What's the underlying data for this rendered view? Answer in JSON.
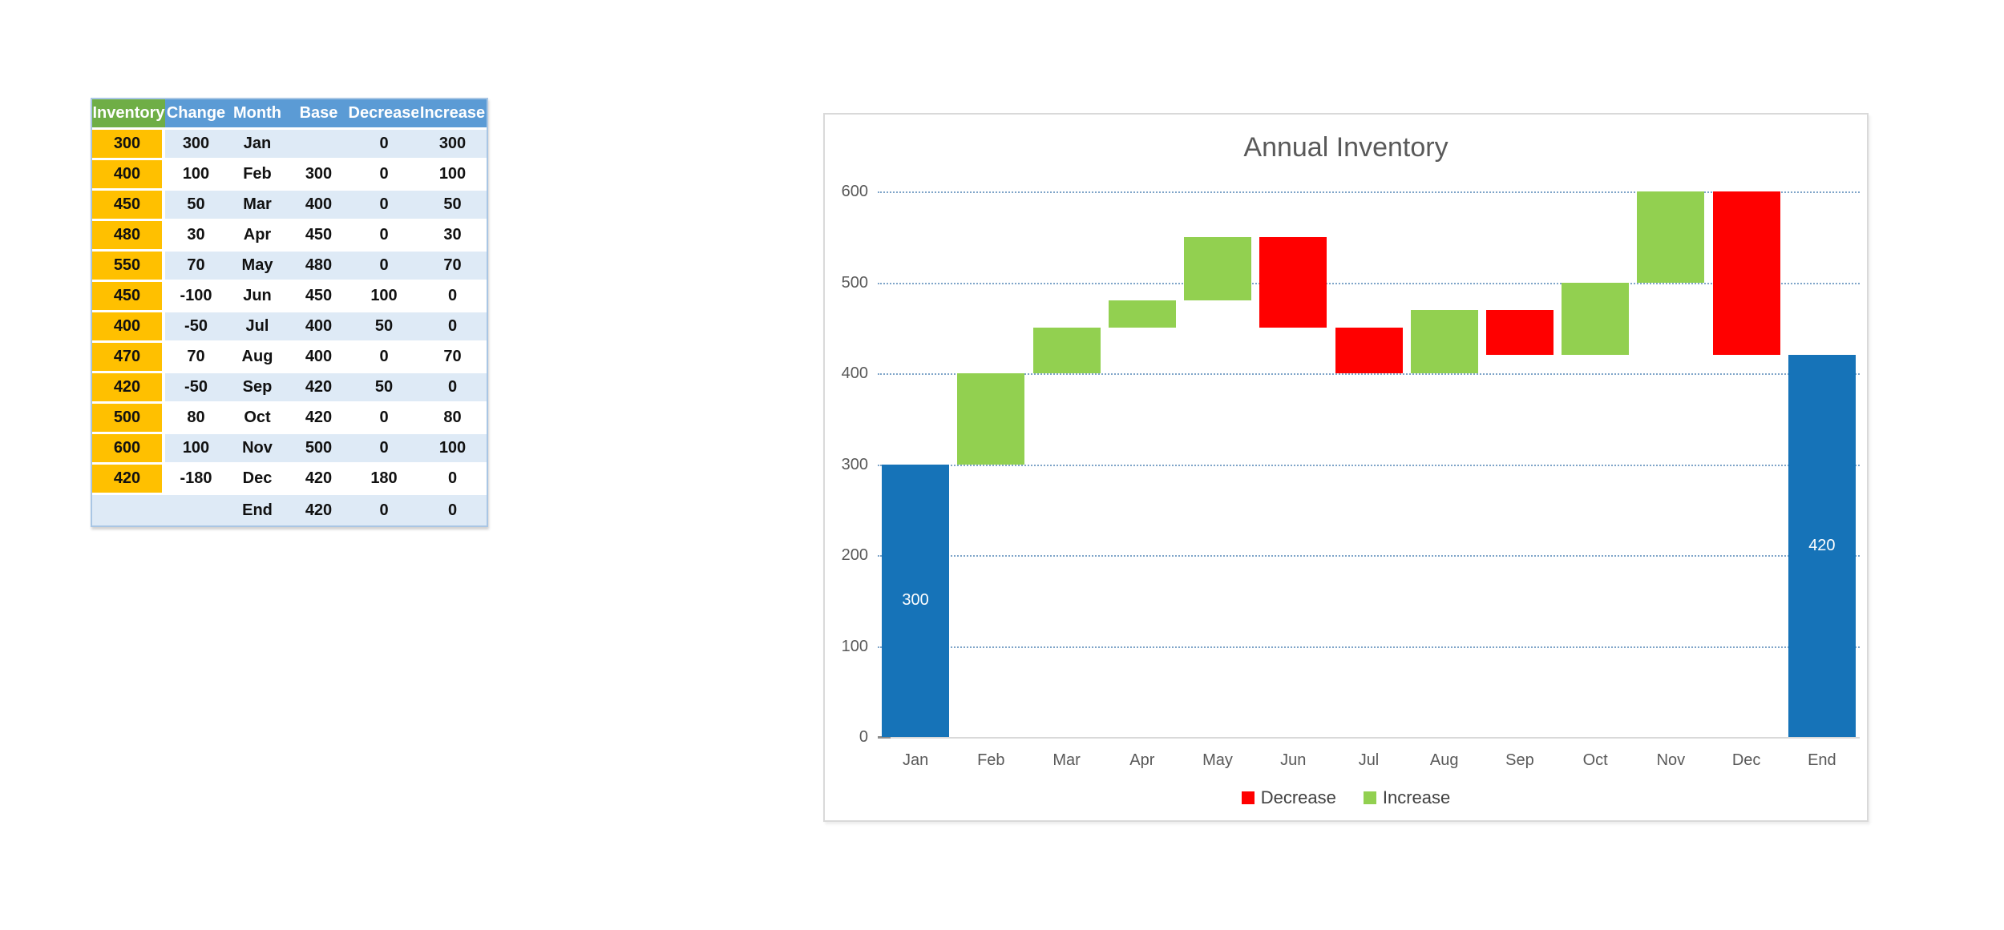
{
  "table": {
    "headers": [
      "Inventory",
      "Change",
      "Month",
      "Base",
      "Decrease",
      "Increase"
    ],
    "rows": [
      [
        "300",
        "300",
        "Jan",
        "",
        "0",
        "300"
      ],
      [
        "400",
        "100",
        "Feb",
        "300",
        "0",
        "100"
      ],
      [
        "450",
        "50",
        "Mar",
        "400",
        "0",
        "50"
      ],
      [
        "480",
        "30",
        "Apr",
        "450",
        "0",
        "30"
      ],
      [
        "550",
        "70",
        "May",
        "480",
        "0",
        "70"
      ],
      [
        "450",
        "-100",
        "Jun",
        "450",
        "100",
        "0"
      ],
      [
        "400",
        "-50",
        "Jul",
        "400",
        "50",
        "0"
      ],
      [
        "470",
        "70",
        "Aug",
        "400",
        "0",
        "70"
      ],
      [
        "420",
        "-50",
        "Sep",
        "420",
        "50",
        "0"
      ],
      [
        "500",
        "80",
        "Oct",
        "420",
        "0",
        "80"
      ],
      [
        "600",
        "100",
        "Nov",
        "500",
        "0",
        "100"
      ],
      [
        "420",
        "-180",
        "Dec",
        "420",
        "180",
        "0"
      ],
      [
        "",
        "",
        "End",
        "420",
        "0",
        "0"
      ]
    ],
    "colors": {
      "header_green": "#6FAE46",
      "header_blue": "#5B9BD5",
      "first_col_orange": "#FFC000",
      "row_alt_blue": "#DEEAF6",
      "row_white": "#FFFFFF",
      "table_border": "#A9C6E4"
    }
  },
  "chart_data": {
    "type": "bar",
    "subtype": "waterfall",
    "title": "Annual Inventory",
    "categories": [
      "Jan",
      "Feb",
      "Mar",
      "Apr",
      "May",
      "Jun",
      "Jul",
      "Aug",
      "Sep",
      "Oct",
      "Nov",
      "Dec",
      "End"
    ],
    "bars": [
      {
        "category": "Jan",
        "from": 0,
        "to": 300,
        "role": "total",
        "label": "300"
      },
      {
        "category": "Feb",
        "from": 300,
        "to": 400,
        "role": "increase"
      },
      {
        "category": "Mar",
        "from": 400,
        "to": 450,
        "role": "increase"
      },
      {
        "category": "Apr",
        "from": 450,
        "to": 480,
        "role": "increase"
      },
      {
        "category": "May",
        "from": 480,
        "to": 550,
        "role": "increase"
      },
      {
        "category": "Jun",
        "from": 550,
        "to": 450,
        "role": "decrease"
      },
      {
        "category": "Jul",
        "from": 450,
        "to": 400,
        "role": "decrease"
      },
      {
        "category": "Aug",
        "from": 400,
        "to": 470,
        "role": "increase"
      },
      {
        "category": "Sep",
        "from": 470,
        "to": 420,
        "role": "decrease"
      },
      {
        "category": "Oct",
        "from": 420,
        "to": 500,
        "role": "increase"
      },
      {
        "category": "Nov",
        "from": 500,
        "to": 600,
        "role": "increase"
      },
      {
        "category": "Dec",
        "from": 600,
        "to": 420,
        "role": "decrease"
      },
      {
        "category": "End",
        "from": 0,
        "to": 420,
        "role": "total",
        "label": "420"
      }
    ],
    "ylim": [
      0,
      600
    ],
    "yticks": [
      0,
      100,
      200,
      300,
      400,
      500,
      600
    ],
    "grid": true,
    "legend": [
      {
        "label": "Decrease",
        "color": "#FF0000"
      },
      {
        "label": "Increase",
        "color": "#92D050"
      }
    ],
    "legend_position": "bottom",
    "colors": {
      "total": "#1673B8",
      "increase": "#92D050",
      "decrease": "#FF0000",
      "title_text": "#595959",
      "axis_text": "#595959",
      "gridline": "#7EA4C8",
      "axis_line": "#D9D9D9"
    }
  }
}
